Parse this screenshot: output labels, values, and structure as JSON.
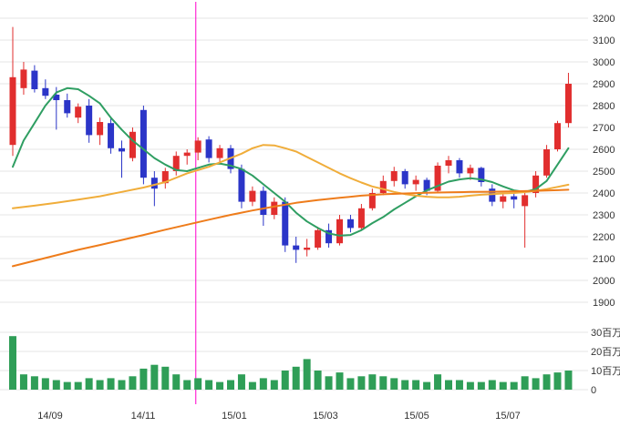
{
  "colors": {
    "background": "#ffffff",
    "grid": "#e4e4e4",
    "text": "#333333",
    "up": "#e12e2e",
    "down": "#2b35c8",
    "volume": "#2f9e57",
    "marker": "#ff00cc",
    "ma_short": "#2f9e62",
    "ma_mid": "#f0ad3a",
    "ma_long": "#ee7c1b"
  },
  "chart_data": {
    "type": "candlestick",
    "period": "weekly",
    "candle_format": [
      "open",
      "high",
      "low",
      "close",
      "volume_millions"
    ],
    "price_axis": {
      "min": 1900,
      "max": 3200,
      "step": 100,
      "labels": [
        "3200",
        "3100",
        "3000",
        "2900",
        "2800",
        "2700",
        "2600",
        "2500",
        "2400",
        "2300",
        "2200",
        "2100",
        "2000",
        "1900"
      ]
    },
    "volume_axis": {
      "unit": "百万",
      "ticks": [
        {
          "value": 30,
          "label": "30百万"
        },
        {
          "value": 20,
          "label": "20百万"
        },
        {
          "value": 10,
          "label": "10百万"
        },
        {
          "value": 0,
          "label": "0"
        }
      ]
    },
    "x_axis": {
      "labels": [
        {
          "label": "14/09",
          "i": 3.43
        },
        {
          "label": "14/11",
          "i": 11.97
        },
        {
          "label": "15/01",
          "i": 20.33
        },
        {
          "label": "15/03",
          "i": 28.7
        },
        {
          "label": "15/05",
          "i": 37.07
        },
        {
          "label": "15/07",
          "i": 45.44
        }
      ]
    },
    "marker_line": {
      "i": 16.8,
      "color": "#ff00cc"
    },
    "candles": [
      [
        2620,
        3160,
        2570,
        2930,
        28
      ],
      [
        2880,
        3000,
        2850,
        2965,
        8
      ],
      [
        2960,
        2985,
        2860,
        2875,
        7
      ],
      [
        2880,
        2920,
        2830,
        2845,
        6
      ],
      [
        2850,
        2885,
        2690,
        2825,
        5
      ],
      [
        2825,
        2855,
        2745,
        2765,
        4
      ],
      [
        2745,
        2810,
        2720,
        2795,
        4
      ],
      [
        2800,
        2830,
        2630,
        2665,
        6
      ],
      [
        2665,
        2745,
        2620,
        2725,
        5
      ],
      [
        2720,
        2750,
        2580,
        2605,
        6
      ],
      [
        2605,
        2640,
        2470,
        2590,
        5
      ],
      [
        2560,
        2700,
        2545,
        2680,
        7
      ],
      [
        2780,
        2800,
        2440,
        2470,
        11
      ],
      [
        2470,
        2500,
        2340,
        2420,
        13
      ],
      [
        2445,
        2515,
        2420,
        2500,
        12
      ],
      [
        2500,
        2590,
        2480,
        2570,
        8
      ],
      [
        2570,
        2600,
        2530,
        2585,
        5
      ],
      [
        2585,
        2655,
        2550,
        2640,
        6
      ],
      [
        2645,
        2660,
        2540,
        2560,
        5
      ],
      [
        2560,
        2620,
        2530,
        2605,
        4
      ],
      [
        2605,
        2620,
        2490,
        2510,
        5
      ],
      [
        2510,
        2530,
        2330,
        2360,
        8
      ],
      [
        2360,
        2430,
        2340,
        2410,
        4
      ],
      [
        2410,
        2430,
        2250,
        2300,
        6
      ],
      [
        2300,
        2380,
        2280,
        2360,
        5
      ],
      [
        2360,
        2380,
        2130,
        2160,
        10
      ],
      [
        2160,
        2200,
        2080,
        2140,
        12
      ],
      [
        2140,
        2190,
        2110,
        2150,
        16
      ],
      [
        2150,
        2245,
        2140,
        2230,
        10
      ],
      [
        2230,
        2260,
        2150,
        2170,
        7
      ],
      [
        2170,
        2300,
        2160,
        2280,
        9
      ],
      [
        2280,
        2300,
        2220,
        2240,
        6
      ],
      [
        2240,
        2350,
        2230,
        2330,
        7
      ],
      [
        2330,
        2420,
        2320,
        2400,
        8
      ],
      [
        2400,
        2480,
        2390,
        2455,
        7
      ],
      [
        2455,
        2520,
        2430,
        2500,
        6
      ],
      [
        2500,
        2510,
        2420,
        2440,
        5
      ],
      [
        2440,
        2480,
        2410,
        2460,
        5
      ],
      [
        2460,
        2470,
        2390,
        2410,
        4
      ],
      [
        2410,
        2540,
        2400,
        2525,
        8
      ],
      [
        2525,
        2570,
        2490,
        2550,
        5
      ],
      [
        2550,
        2560,
        2470,
        2490,
        5
      ],
      [
        2490,
        2530,
        2460,
        2515,
        4
      ],
      [
        2515,
        2520,
        2430,
        2450,
        4
      ],
      [
        2420,
        2440,
        2340,
        2360,
        5
      ],
      [
        2360,
        2400,
        2330,
        2385,
        4
      ],
      [
        2385,
        2400,
        2330,
        2370,
        4
      ],
      [
        2340,
        2400,
        2150,
        2390,
        7
      ],
      [
        2400,
        2500,
        2380,
        2480,
        6
      ],
      [
        2480,
        2620,
        2470,
        2600,
        8
      ],
      [
        2600,
        2730,
        2590,
        2720,
        9
      ],
      [
        2720,
        2950,
        2700,
        2900,
        10
      ]
    ],
    "overlays": [
      {
        "name": "ma-short-line",
        "color": "#2f9e62",
        "points": [
          [
            0,
            2520
          ],
          [
            1,
            2640
          ],
          [
            2,
            2720
          ],
          [
            3,
            2800
          ],
          [
            4,
            2860
          ],
          [
            5,
            2880
          ],
          [
            6,
            2875
          ],
          [
            7,
            2845
          ],
          [
            8,
            2810
          ],
          [
            9,
            2745
          ],
          [
            10,
            2690
          ],
          [
            11,
            2640
          ],
          [
            12,
            2600
          ],
          [
            13,
            2560
          ],
          [
            14,
            2530
          ],
          [
            15,
            2505
          ],
          [
            16,
            2500
          ],
          [
            17,
            2515
          ],
          [
            18,
            2530
          ],
          [
            19,
            2535
          ],
          [
            20,
            2525
          ],
          [
            21,
            2510
          ],
          [
            22,
            2480
          ],
          [
            23,
            2440
          ],
          [
            24,
            2400
          ],
          [
            25,
            2360
          ],
          [
            26,
            2310
          ],
          [
            27,
            2270
          ],
          [
            28,
            2240
          ],
          [
            29,
            2215
          ],
          [
            30,
            2205
          ],
          [
            31,
            2208
          ],
          [
            32,
            2230
          ],
          [
            33,
            2262
          ],
          [
            34,
            2290
          ],
          [
            35,
            2325
          ],
          [
            36,
            2355
          ],
          [
            37,
            2385
          ],
          [
            38,
            2412
          ],
          [
            39,
            2432
          ],
          [
            40,
            2452
          ],
          [
            41,
            2462
          ],
          [
            42,
            2468
          ],
          [
            43,
            2462
          ],
          [
            44,
            2450
          ],
          [
            45,
            2430
          ],
          [
            46,
            2412
          ],
          [
            47,
            2405
          ],
          [
            48,
            2418
          ],
          [
            49,
            2455
          ],
          [
            50,
            2530
          ],
          [
            51,
            2605
          ]
        ]
      },
      {
        "name": "ma-mid-line",
        "color": "#f0ad3a",
        "points": [
          [
            0,
            2330
          ],
          [
            2,
            2342
          ],
          [
            4,
            2355
          ],
          [
            6,
            2370
          ],
          [
            8,
            2385
          ],
          [
            10,
            2405
          ],
          [
            12,
            2425
          ],
          [
            14,
            2450
          ],
          [
            16,
            2490
          ],
          [
            18,
            2520
          ],
          [
            20,
            2560
          ],
          [
            21,
            2580
          ],
          [
            22,
            2605
          ],
          [
            23,
            2620
          ],
          [
            24,
            2618
          ],
          [
            25,
            2605
          ],
          [
            26,
            2590
          ],
          [
            27,
            2565
          ],
          [
            28,
            2540
          ],
          [
            29,
            2515
          ],
          [
            30,
            2490
          ],
          [
            31,
            2468
          ],
          [
            32,
            2448
          ],
          [
            33,
            2430
          ],
          [
            34,
            2418
          ],
          [
            35,
            2405
          ],
          [
            36,
            2395
          ],
          [
            37,
            2388
          ],
          [
            38,
            2383
          ],
          [
            39,
            2380
          ],
          [
            40,
            2380
          ],
          [
            41,
            2383
          ],
          [
            42,
            2388
          ],
          [
            43,
            2392
          ],
          [
            44,
            2395
          ],
          [
            45,
            2398
          ],
          [
            46,
            2400
          ],
          [
            47,
            2404
          ],
          [
            48,
            2410
          ],
          [
            49,
            2418
          ],
          [
            50,
            2428
          ],
          [
            51,
            2438
          ]
        ]
      },
      {
        "name": "ma-long-line",
        "color": "#ee7c1b",
        "points": [
          [
            0,
            2065
          ],
          [
            2,
            2090
          ],
          [
            4,
            2115
          ],
          [
            6,
            2140
          ],
          [
            8,
            2162
          ],
          [
            10,
            2185
          ],
          [
            12,
            2208
          ],
          [
            14,
            2232
          ],
          [
            16,
            2255
          ],
          [
            18,
            2278
          ],
          [
            20,
            2300
          ],
          [
            22,
            2320
          ],
          [
            24,
            2338
          ],
          [
            26,
            2355
          ],
          [
            28,
            2368
          ],
          [
            30,
            2378
          ],
          [
            32,
            2388
          ],
          [
            34,
            2394
          ],
          [
            36,
            2398
          ],
          [
            38,
            2401
          ],
          [
            40,
            2403
          ],
          [
            42,
            2405
          ],
          [
            44,
            2406
          ],
          [
            46,
            2408
          ],
          [
            48,
            2410
          ],
          [
            50,
            2413
          ],
          [
            51,
            2415
          ]
        ]
      }
    ]
  }
}
